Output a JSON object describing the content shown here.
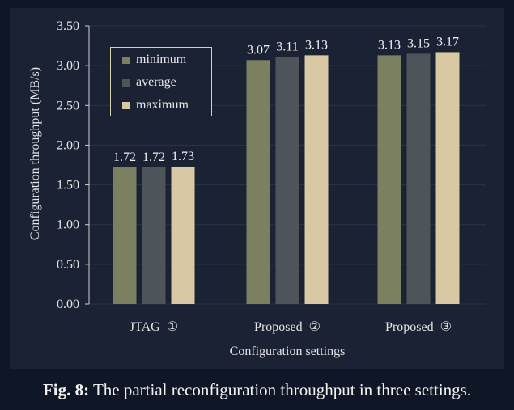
{
  "colors": {
    "minimum": "#7a8060",
    "average": "#4d555a",
    "maximum": "#d8c9a4",
    "axis": "#d0d0d0",
    "grid": "#2b3447"
  },
  "caption": {
    "label": "Fig. 8:",
    "text": "The partial reconfiguration throughput in three settings."
  },
  "chart_data": {
    "type": "bar",
    "title": "",
    "xlabel": "Configuration settings",
    "ylabel": "Configuration throughput (MB/s)",
    "ylim": [
      0,
      3.5
    ],
    "yticks": [
      "0.00",
      "0.50",
      "1.00",
      "1.50",
      "2.00",
      "2.50",
      "3.00",
      "3.50"
    ],
    "grid": true,
    "legend_position": "top-left",
    "categories": [
      "JTAG_①",
      "Proposed_②",
      "Proposed_③"
    ],
    "series": [
      {
        "name": "minimum",
        "values": [
          1.72,
          3.07,
          3.13
        ],
        "labels": [
          "1.72",
          "3.07",
          "3.13"
        ]
      },
      {
        "name": "average",
        "values": [
          1.72,
          3.11,
          3.15
        ],
        "labels": [
          "1.72",
          "3.11",
          "3.15"
        ]
      },
      {
        "name": "maximum",
        "values": [
          1.73,
          3.13,
          3.17
        ],
        "labels": [
          "1.73",
          "3.13",
          "3.17"
        ]
      }
    ]
  }
}
